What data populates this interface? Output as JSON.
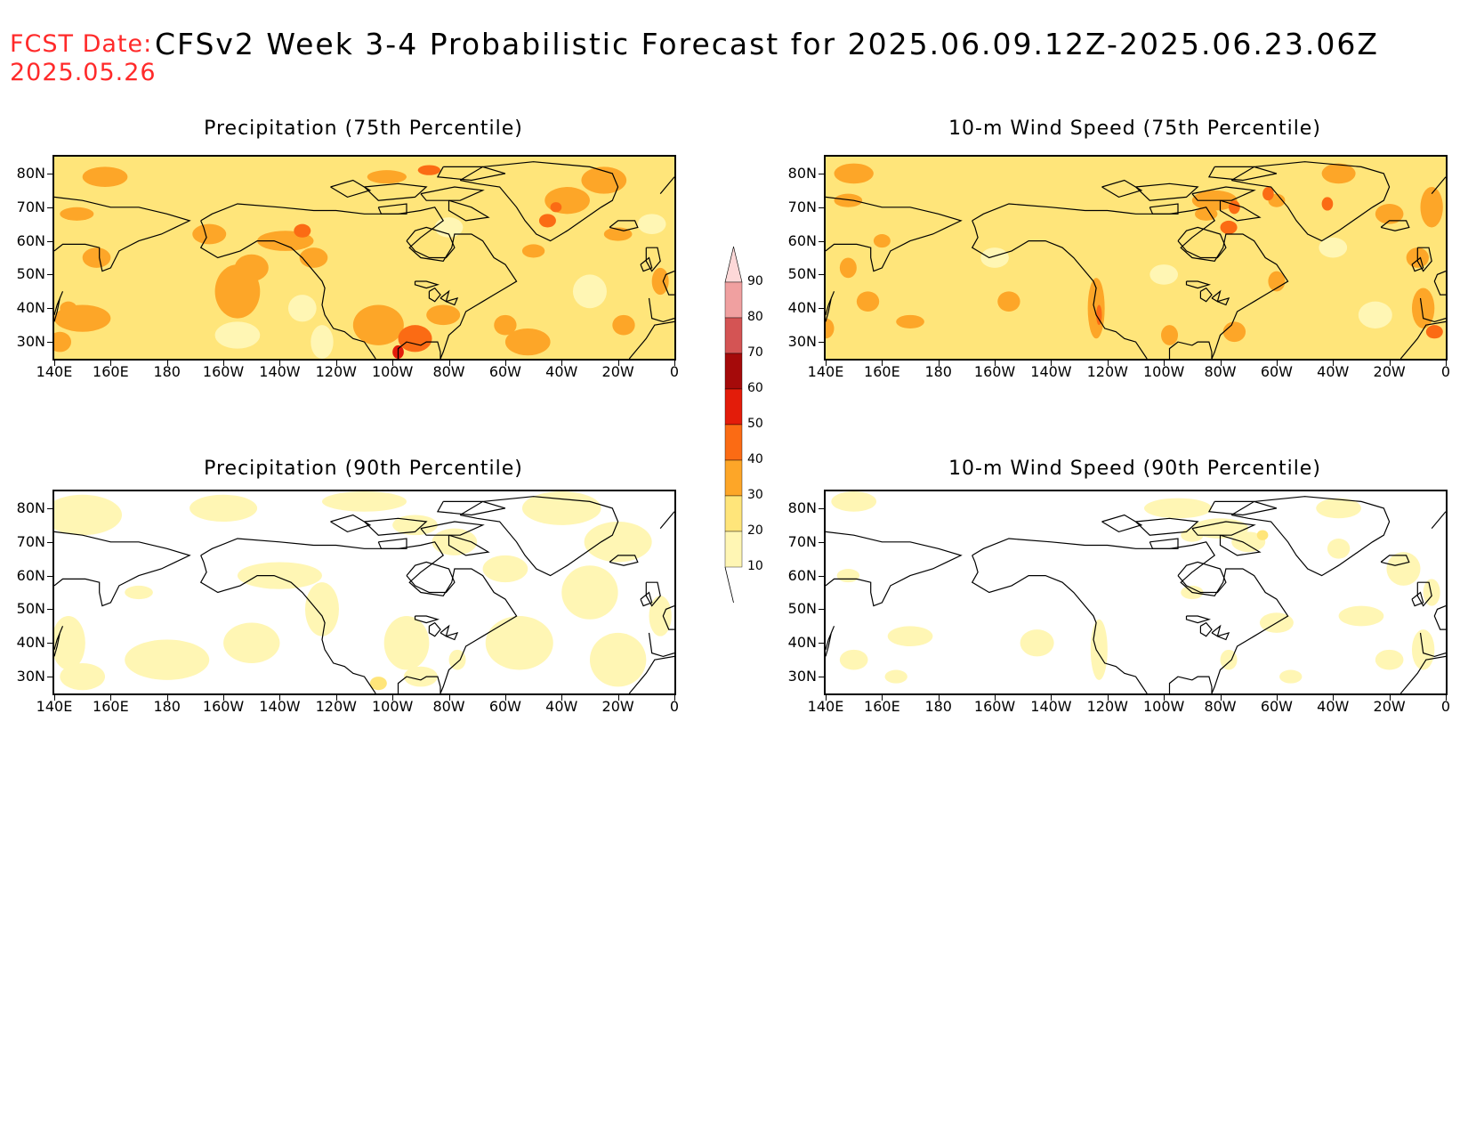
{
  "header": {
    "fcst_label": "FCST Date:",
    "fcst_date": "2025.05.26",
    "title": "CFSv2 Week 3-4 Probabilistic Forecast for 2025.06.09.12Z-2025.06.23.06Z"
  },
  "panels": [
    {
      "id": "precip-75",
      "title": "Precipitation (75th Percentile)",
      "variable": "precipitation",
      "percentile": 75
    },
    {
      "id": "wind-75",
      "title": "10-m Wind Speed (75th Percentile)",
      "variable": "wind",
      "percentile": 75
    },
    {
      "id": "precip-90",
      "title": "Precipitation (90th Percentile)",
      "variable": "precipitation",
      "percentile": 90
    },
    {
      "id": "wind-90",
      "title": "10-m Wind Speed (90th Percentile)",
      "variable": "wind",
      "percentile": 90
    }
  ],
  "axes": {
    "lat_labels": [
      "80N",
      "70N",
      "60N",
      "50N",
      "40N",
      "30N"
    ],
    "lon_labels": [
      "140E",
      "160E",
      "180",
      "160W",
      "140W",
      "120W",
      "100W",
      "80W",
      "60W",
      "40W",
      "20W",
      "0"
    ],
    "lat_range": [
      25,
      85
    ],
    "lon_range_deg_east": [
      140,
      360
    ]
  },
  "colorbar": {
    "levels": [
      "90",
      "80",
      "70",
      "60",
      "50",
      "40",
      "30",
      "20",
      "10"
    ],
    "colors": {
      "10-20": "#fff6b4",
      "20-30": "#ffe57a",
      "30-40": "#fda628",
      "40-50": "#fb6b14",
      "50-60": "#e31c0a",
      "60-70": "#a50a0a",
      "70-80": "#d45454",
      "80-90": "#f0a0a0",
      "90+": "#fdd8d8"
    }
  }
}
